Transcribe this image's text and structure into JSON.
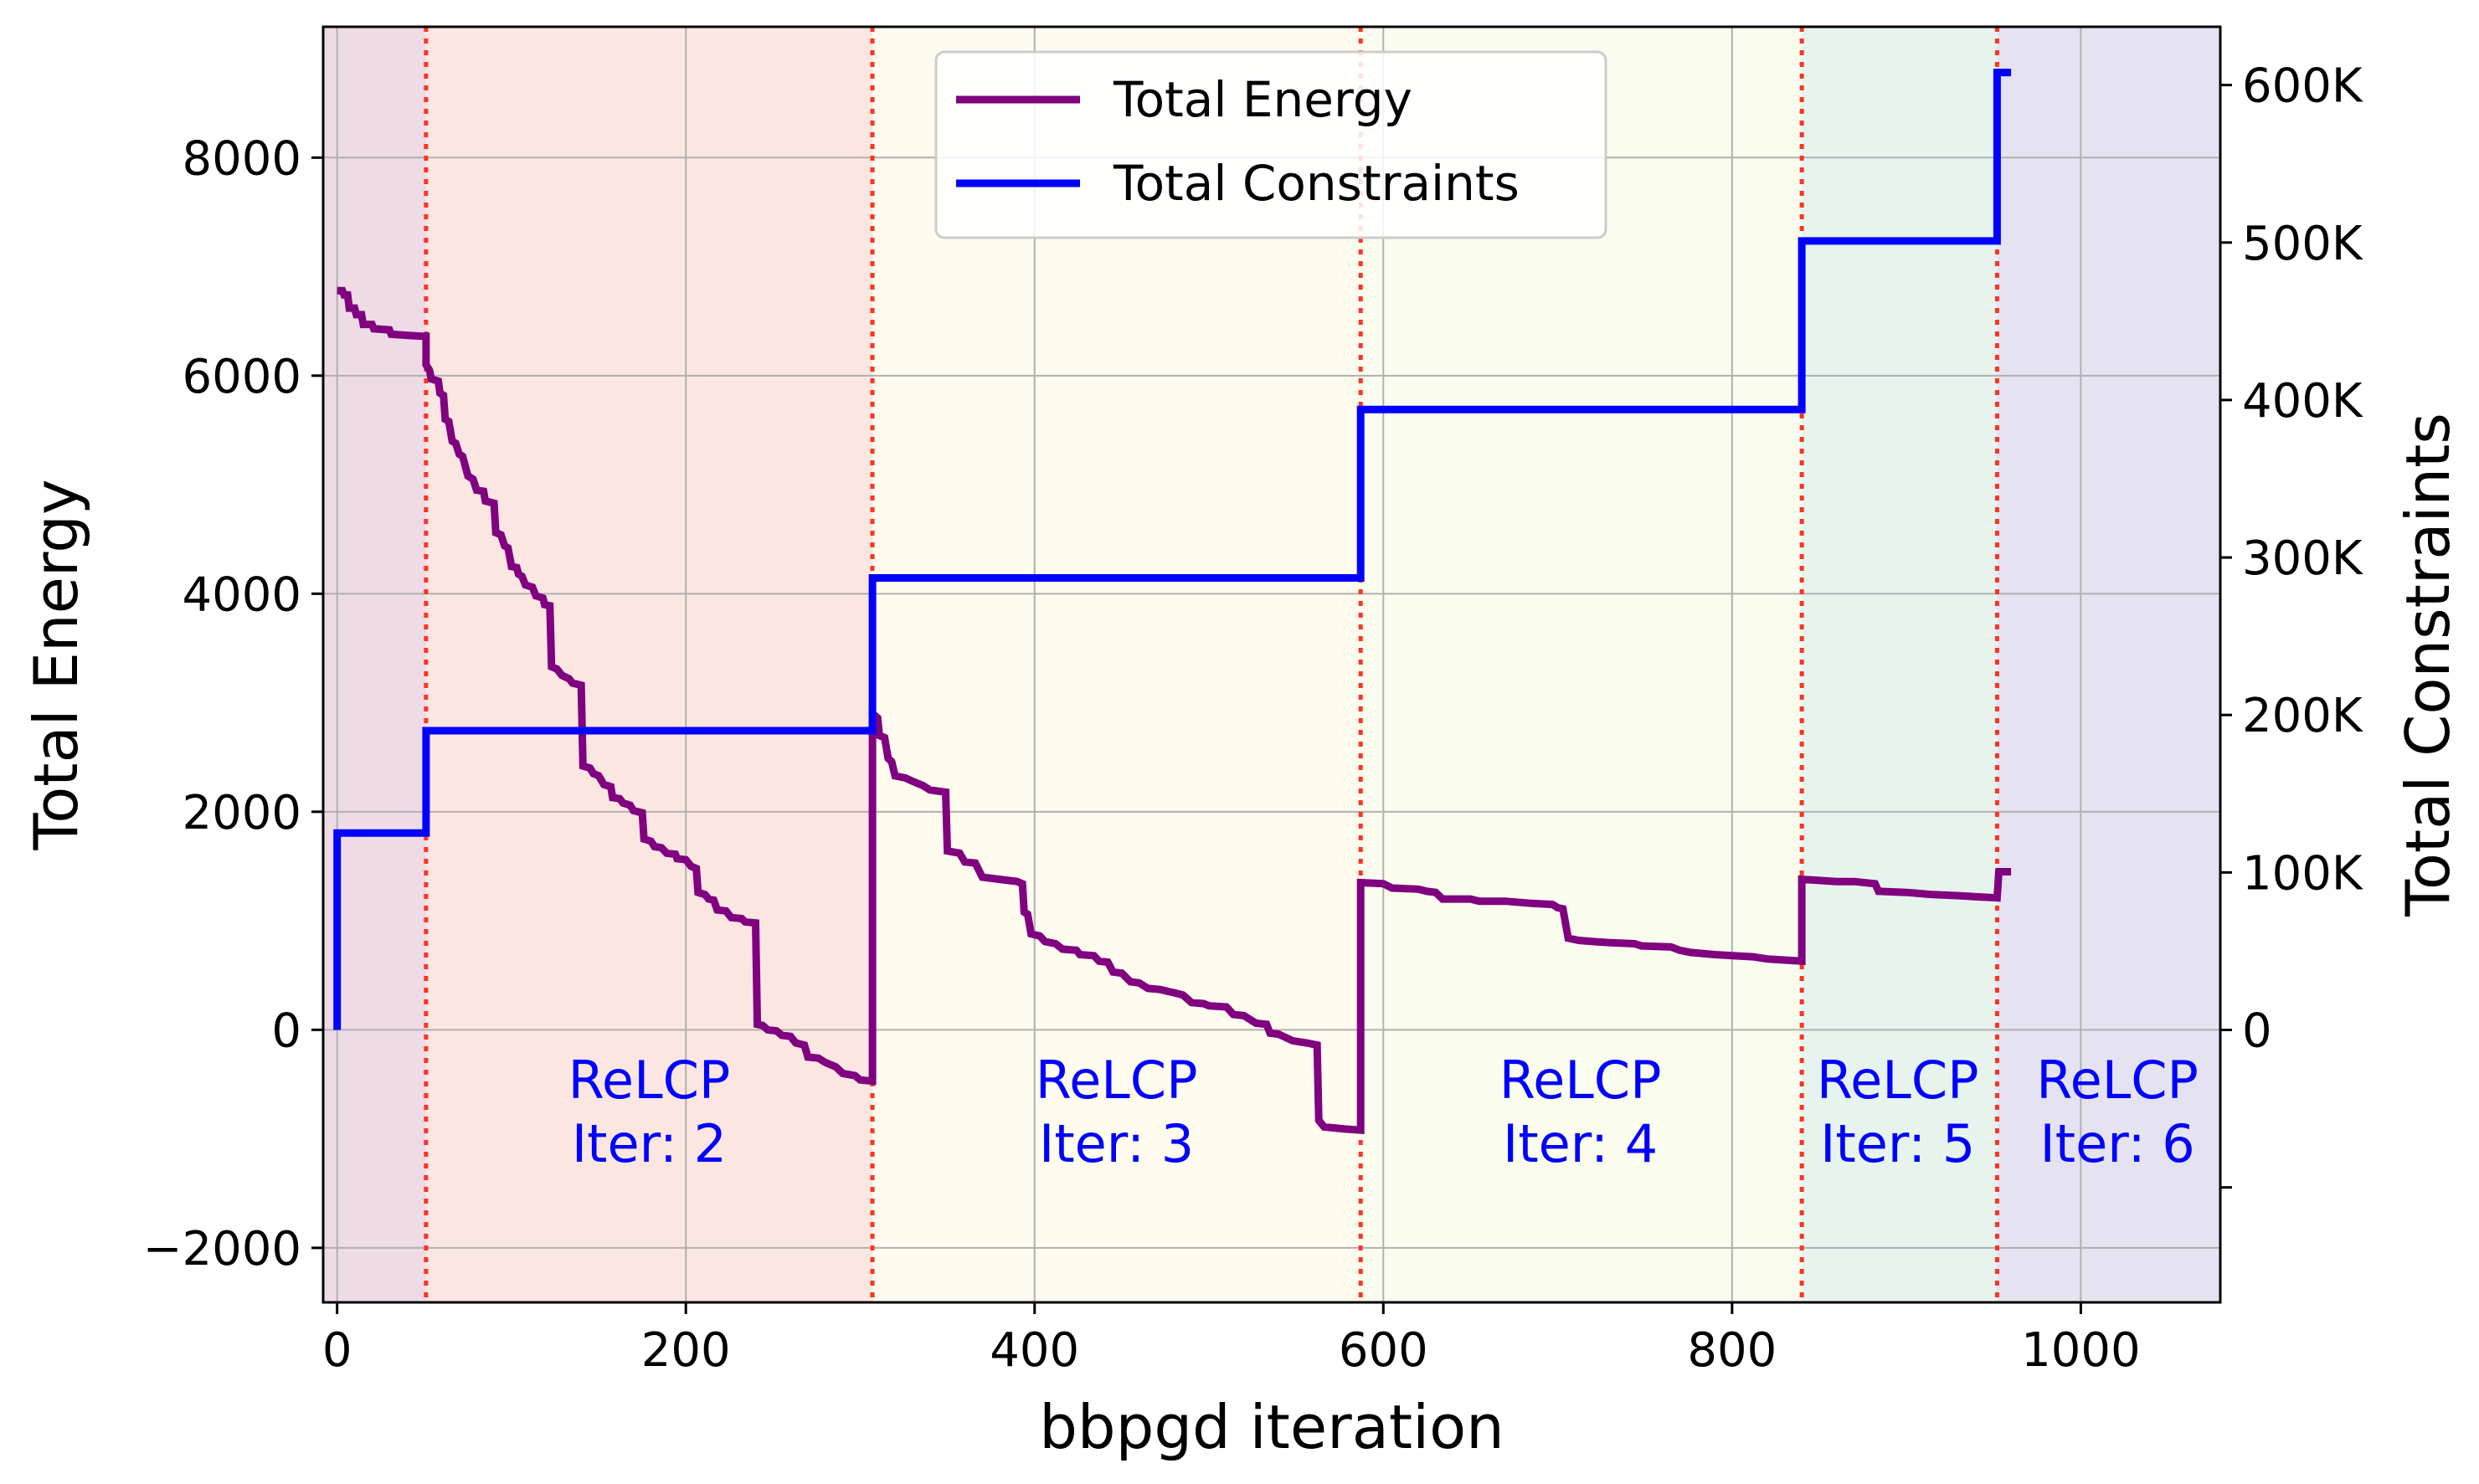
{
  "chart_data": {
    "type": "line",
    "xlabel": "bbpgd iteration",
    "ylabel_left": "Total Energy",
    "ylabel_right": "Total Constraints",
    "xlim": [
      -8,
      1080
    ],
    "ylim_left": [
      -2500,
      9200
    ],
    "ylim_right": [
      -173000,
      637000
    ],
    "x_ticks": [
      0,
      200,
      400,
      600,
      800,
      1000
    ],
    "y_left_ticks": [
      -2000,
      0,
      2000,
      4000,
      6000,
      8000
    ],
    "y_left_tick_labels": [
      "−2000",
      "0",
      "2000",
      "4000",
      "6000",
      "8000"
    ],
    "y_right_ticks": [
      0,
      100000,
      200000,
      300000,
      400000,
      500000,
      600000
    ],
    "y_right_tick_labels": [
      "0",
      "100K",
      "200K",
      "300K",
      "400K",
      "500K",
      "600K"
    ],
    "y_right_minor_ticks": [
      -100000
    ],
    "grid": true,
    "legend_position": "top-center",
    "colors": {
      "energy": "#800080",
      "constraints": "#0000ff",
      "boundary": "#ff3322",
      "annotation": "#0000ff",
      "grid": "#b0b0b0"
    },
    "regions": [
      {
        "x0": -8,
        "x1": 51,
        "color": "#eedbe6"
      },
      {
        "x0": 51,
        "x1": 307,
        "color": "#fbe6e1"
      },
      {
        "x0": 307,
        "x1": 587,
        "color": "#fffbee"
      },
      {
        "x0": 587,
        "x1": 840,
        "color": "#fafcee"
      },
      {
        "x0": 840,
        "x1": 952,
        "color": "#e7f4ee"
      },
      {
        "x0": 952,
        "x1": 1080,
        "color": "#e5e3f1"
      }
    ],
    "boundaries": [
      51,
      307,
      587,
      840,
      952
    ],
    "annotations": [
      {
        "line1": "ReLCP",
        "line2": "Iter: 2",
        "x": 179
      },
      {
        "line1": "ReLCP",
        "line2": "Iter: 3",
        "x": 447
      },
      {
        "line1": "ReLCP",
        "line2": "Iter: 4",
        "x": 713
      },
      {
        "line1": "ReLCP",
        "line2": "Iter: 5",
        "x": 895
      },
      {
        "line1": "ReLCP",
        "line2": "Iter: 6",
        "x": 1021
      }
    ],
    "series": [
      {
        "name": "Total Energy",
        "axis": "left",
        "points": [
          [
            0,
            6780
          ],
          [
            3,
            6780
          ],
          [
            4,
            6740
          ],
          [
            6,
            6740
          ],
          [
            7,
            6620
          ],
          [
            10,
            6620
          ],
          [
            11,
            6560
          ],
          [
            14,
            6560
          ],
          [
            15,
            6470
          ],
          [
            20,
            6470
          ],
          [
            21,
            6430
          ],
          [
            30,
            6420
          ],
          [
            31,
            6380
          ],
          [
            40,
            6370
          ],
          [
            50,
            6360
          ],
          [
            51,
            6360
          ],
          [
            51,
            6100
          ],
          [
            53,
            6050
          ],
          [
            54,
            5970
          ],
          [
            58,
            5950
          ],
          [
            59,
            5840
          ],
          [
            61,
            5820
          ],
          [
            62,
            5600
          ],
          [
            64,
            5580
          ],
          [
            66,
            5400
          ],
          [
            68,
            5380
          ],
          [
            70,
            5280
          ],
          [
            72,
            5260
          ],
          [
            75,
            5080
          ],
          [
            78,
            5050
          ],
          [
            80,
            4950
          ],
          [
            84,
            4940
          ],
          [
            85,
            4850
          ],
          [
            90,
            4830
          ],
          [
            91,
            4560
          ],
          [
            94,
            4540
          ],
          [
            96,
            4440
          ],
          [
            98,
            4420
          ],
          [
            100,
            4250
          ],
          [
            103,
            4240
          ],
          [
            104,
            4180
          ],
          [
            106,
            4160
          ],
          [
            108,
            4080
          ],
          [
            112,
            4060
          ],
          [
            114,
            3980
          ],
          [
            118,
            3960
          ],
          [
            119,
            3900
          ],
          [
            122,
            3890
          ],
          [
            123,
            3330
          ],
          [
            126,
            3310
          ],
          [
            129,
            3250
          ],
          [
            133,
            3220
          ],
          [
            135,
            3180
          ],
          [
            140,
            3160
          ],
          [
            141,
            2420
          ],
          [
            145,
            2400
          ],
          [
            147,
            2350
          ],
          [
            150,
            2330
          ],
          [
            153,
            2250
          ],
          [
            157,
            2230
          ],
          [
            158,
            2130
          ],
          [
            162,
            2120
          ],
          [
            164,
            2080
          ],
          [
            168,
            2060
          ],
          [
            170,
            2010
          ],
          [
            175,
            1990
          ],
          [
            176,
            1750
          ],
          [
            180,
            1730
          ],
          [
            182,
            1680
          ],
          [
            186,
            1670
          ],
          [
            189,
            1620
          ],
          [
            194,
            1610
          ],
          [
            195,
            1570
          ],
          [
            200,
            1560
          ],
          [
            203,
            1500
          ],
          [
            206,
            1480
          ],
          [
            207,
            1260
          ],
          [
            211,
            1240
          ],
          [
            213,
            1200
          ],
          [
            216,
            1190
          ],
          [
            218,
            1100
          ],
          [
            223,
            1090
          ],
          [
            226,
            1030
          ],
          [
            232,
            1020
          ],
          [
            234,
            990
          ],
          [
            240,
            980
          ],
          [
            241,
            50
          ],
          [
            244,
            40
          ],
          [
            247,
            0
          ],
          [
            252,
            -10
          ],
          [
            255,
            -50
          ],
          [
            260,
            -60
          ],
          [
            263,
            -120
          ],
          [
            268,
            -140
          ],
          [
            270,
            -250
          ],
          [
            276,
            -260
          ],
          [
            280,
            -300
          ],
          [
            286,
            -340
          ],
          [
            290,
            -400
          ],
          [
            297,
            -420
          ],
          [
            300,
            -460
          ],
          [
            307,
            -470
          ],
          [
            307,
            2900
          ],
          [
            310,
            2860
          ],
          [
            311,
            2700
          ],
          [
            314,
            2680
          ],
          [
            316,
            2490
          ],
          [
            318,
            2460
          ],
          [
            320,
            2330
          ],
          [
            326,
            2310
          ],
          [
            330,
            2280
          ],
          [
            336,
            2240
          ],
          [
            340,
            2200
          ],
          [
            349,
            2180
          ],
          [
            350,
            1640
          ],
          [
            357,
            1620
          ],
          [
            360,
            1540
          ],
          [
            366,
            1530
          ],
          [
            370,
            1400
          ],
          [
            380,
            1380
          ],
          [
            390,
            1360
          ],
          [
            393,
            1340
          ],
          [
            394,
            1080
          ],
          [
            396,
            1060
          ],
          [
            398,
            880
          ],
          [
            403,
            860
          ],
          [
            406,
            810
          ],
          [
            412,
            790
          ],
          [
            416,
            740
          ],
          [
            424,
            730
          ],
          [
            426,
            690
          ],
          [
            434,
            680
          ],
          [
            437,
            630
          ],
          [
            442,
            620
          ],
          [
            445,
            530
          ],
          [
            450,
            520
          ],
          [
            455,
            440
          ],
          [
            460,
            430
          ],
          [
            465,
            380
          ],
          [
            472,
            370
          ],
          [
            480,
            340
          ],
          [
            485,
            320
          ],
          [
            490,
            250
          ],
          [
            497,
            240
          ],
          [
            500,
            220
          ],
          [
            510,
            210
          ],
          [
            514,
            140
          ],
          [
            520,
            130
          ],
          [
            527,
            60
          ],
          [
            533,
            50
          ],
          [
            535,
            -30
          ],
          [
            540,
            -40
          ],
          [
            548,
            -100
          ],
          [
            556,
            -120
          ],
          [
            562,
            -140
          ],
          [
            563,
            -830
          ],
          [
            566,
            -890
          ],
          [
            572,
            -900
          ],
          [
            578,
            -910
          ],
          [
            587,
            -920
          ],
          [
            587,
            1350
          ],
          [
            600,
            1340
          ],
          [
            605,
            1300
          ],
          [
            620,
            1290
          ],
          [
            625,
            1270
          ],
          [
            630,
            1260
          ],
          [
            634,
            1200
          ],
          [
            650,
            1200
          ],
          [
            655,
            1180
          ],
          [
            670,
            1180
          ],
          [
            685,
            1160
          ],
          [
            697,
            1150
          ],
          [
            700,
            1120
          ],
          [
            703,
            1110
          ],
          [
            706,
            840
          ],
          [
            712,
            820
          ],
          [
            720,
            810
          ],
          [
            730,
            800
          ],
          [
            744,
            790
          ],
          [
            748,
            770
          ],
          [
            765,
            760
          ],
          [
            770,
            730
          ],
          [
            776,
            710
          ],
          [
            790,
            690
          ],
          [
            800,
            680
          ],
          [
            812,
            670
          ],
          [
            820,
            650
          ],
          [
            830,
            640
          ],
          [
            840,
            630
          ],
          [
            840,
            1380
          ],
          [
            850,
            1370
          ],
          [
            860,
            1360
          ],
          [
            870,
            1360
          ],
          [
            882,
            1340
          ],
          [
            884,
            1270
          ],
          [
            900,
            1260
          ],
          [
            915,
            1240
          ],
          [
            930,
            1230
          ],
          [
            940,
            1220
          ],
          [
            952,
            1210
          ],
          [
            953,
            1450
          ],
          [
            960,
            1450
          ]
        ]
      },
      {
        "name": "Total Constraints",
        "axis": "right",
        "points": [
          [
            0,
            0
          ],
          [
            0,
            125000
          ],
          [
            51,
            125000
          ],
          [
            51,
            190000
          ],
          [
            307,
            190000
          ],
          [
            307,
            287000
          ],
          [
            587,
            287000
          ],
          [
            587,
            394000
          ],
          [
            840,
            394000
          ],
          [
            840,
            501000
          ],
          [
            952,
            501000
          ],
          [
            952,
            608000
          ],
          [
            960,
            608000
          ]
        ]
      }
    ]
  }
}
